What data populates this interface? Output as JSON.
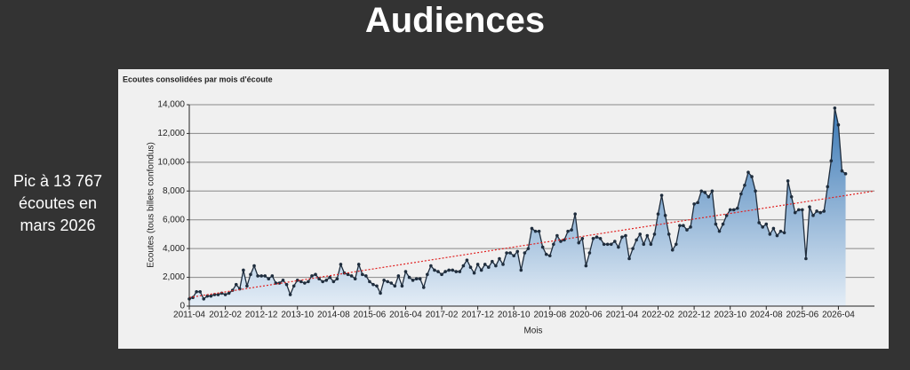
{
  "slide": {
    "title": "Audiences",
    "note": "Pic à 13 767 écoutes en mars 2026"
  },
  "chart_data": {
    "type": "area",
    "title": "Ecoutes consolidées par mois d'écoute",
    "x_label": "Mois",
    "y_label": "Ecoutes (tous billets confondus)",
    "categories": [
      "2011-04",
      null,
      null,
      null,
      null,
      null,
      null,
      null,
      null,
      null,
      "2012-02",
      null,
      null,
      null,
      null,
      null,
      null,
      null,
      null,
      null,
      "2012-12",
      null,
      null,
      null,
      null,
      null,
      null,
      null,
      null,
      null,
      "2013-10",
      null,
      null,
      null,
      null,
      null,
      null,
      null,
      null,
      null,
      "2014-08",
      null,
      null,
      null,
      null,
      null,
      null,
      null,
      null,
      null,
      "2015-06",
      null,
      null,
      null,
      null,
      null,
      null,
      null,
      null,
      null,
      "2016-04",
      null,
      null,
      null,
      null,
      null,
      null,
      null,
      null,
      null,
      "2017-02",
      null,
      null,
      null,
      null,
      null,
      null,
      null,
      null,
      null,
      "2017-12",
      null,
      null,
      null,
      null,
      null,
      null,
      null,
      null,
      null,
      "2018-10",
      null,
      null,
      null,
      null,
      null,
      null,
      null,
      null,
      null,
      "2019-08",
      null,
      null,
      null,
      null,
      null,
      null,
      null,
      null,
      null,
      "2020-06",
      null,
      null,
      null,
      null,
      null,
      null,
      null,
      null,
      null,
      "2021-04",
      null,
      null,
      null,
      null,
      null,
      null,
      null,
      null,
      null,
      "2022-02",
      null,
      null,
      null,
      null,
      null,
      null,
      null,
      null,
      null,
      "2022-12",
      null,
      null,
      null,
      null,
      null,
      null,
      null,
      null,
      null,
      "2023-10",
      null,
      null,
      null,
      null,
      null,
      null,
      null,
      null,
      null,
      "2024-08",
      null,
      null,
      null,
      null,
      null,
      null,
      null,
      null,
      null,
      "2025-06",
      null,
      null,
      null,
      null,
      null,
      null,
      null,
      null,
      null,
      "2026-04",
      null,
      null,
      null,
      null,
      null,
      null,
      null,
      null,
      null,
      null
    ],
    "values": [
      500,
      600,
      1000,
      1000,
      500,
      700,
      700,
      800,
      800,
      900,
      800,
      900,
      1100,
      1500,
      1200,
      2500,
      1400,
      2200,
      2800,
      2100,
      2100,
      2100,
      1900,
      2100,
      1600,
      1600,
      1800,
      1500,
      800,
      1400,
      1800,
      1700,
      1600,
      1700,
      2100,
      2200,
      1900,
      1700,
      1800,
      2000,
      1700,
      1900,
      2900,
      2300,
      2200,
      2100,
      1900,
      2900,
      2200,
      2100,
      1700,
      1500,
      1400,
      900,
      1800,
      1700,
      1600,
      1400,
      2100,
      1400,
      2400,
      2000,
      1800,
      1900,
      1900,
      1300,
      2200,
      2800,
      2500,
      2400,
      2200,
      2400,
      2500,
      2500,
      2400,
      2400,
      2800,
      3200,
      2700,
      2300,
      2900,
      2500,
      2900,
      2700,
      3100,
      2800,
      3300,
      2900,
      3700,
      3700,
      3500,
      3800,
      2500,
      3700,
      4000,
      5400,
      5200,
      5200,
      4100,
      3600,
      3500,
      4300,
      4900,
      4500,
      4600,
      5200,
      5300,
      6400,
      4400,
      4700,
      2800,
      3700,
      4700,
      4800,
      4700,
      4300,
      4300,
      4300,
      4500,
      4100,
      4800,
      4900,
      3300,
      4000,
      4600,
      5000,
      4300,
      4900,
      4300,
      5000,
      6400,
      7700,
      6300,
      5000,
      3900,
      4300,
      5600,
      5600,
      5300,
      5500,
      7100,
      7200,
      8000,
      7900,
      7600,
      8000,
      5700,
      5200,
      5700,
      6300,
      6700,
      6700,
      6800,
      7800,
      8400,
      9300,
      9000,
      8000,
      5800,
      5500,
      5700,
      5000,
      5400,
      4900,
      5200,
      5100,
      8700,
      7600,
      6500,
      6700,
      6700,
      3300,
      6900,
      6300,
      6600,
      6500,
      6600,
      8300,
      10100,
      13767,
      12600,
      9400,
      9200,
      null,
      null,
      null,
      null,
      null,
      null,
      null,
      null
    ],
    "color": "#1f2d3d",
    "fill": "#3a78b5",
    "trend": {
      "values": [
        600,
        8000
      ],
      "color": "#e02020"
    },
    "ylim": [
      0,
      14000
    ],
    "yticks": [
      0,
      {
        "value": 2000,
        "label": "2,000"
      },
      {
        "value": 4000,
        "label": "4,000"
      },
      {
        "value": 6000,
        "label": "6,000"
      },
      {
        "value": 8000,
        "label": "8,000"
      },
      {
        "value": 10000,
        "label": "10,000"
      },
      {
        "value": 12000,
        "label": "12,000"
      },
      {
        "value": 14000,
        "label": "14,000"
      }
    ],
    "grid": true
  }
}
